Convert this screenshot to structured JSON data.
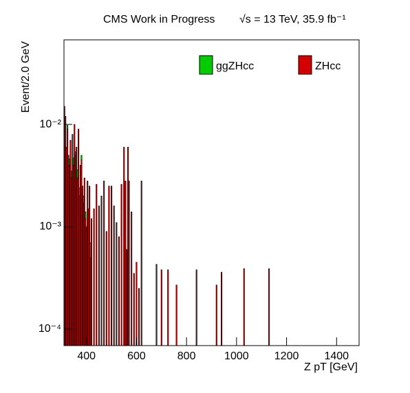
{
  "chart_data": {
    "type": "bar",
    "title": "CMS Work in Progress",
    "subtitle": "√s = 13 TeV, 35.9 fb⁻¹",
    "x_label": "Z pT [GeV]",
    "y_label": "Event/2.0 GeV",
    "log_y": true,
    "stacked": true,
    "legend": "top-right",
    "xlim": [
      310,
      1490
    ],
    "xticks": [
      400,
      600,
      800,
      1000,
      1200,
      1400
    ],
    "ylim": [
      6.9e-05,
      0.067
    ],
    "yticks": [
      {
        "value": 0.0001,
        "label": "10⁻⁴"
      },
      {
        "value": 0.001,
        "label": "10⁻³"
      },
      {
        "value": 0.01,
        "label": "10⁻²"
      }
    ],
    "x": [
      312,
      316,
      320,
      324,
      328,
      332,
      336,
      340,
      344,
      348,
      352,
      356,
      360,
      364,
      368,
      372,
      376,
      380,
      384,
      388,
      392,
      396,
      400,
      404,
      408,
      412,
      416,
      420,
      430,
      440,
      450,
      460,
      470,
      480,
      490,
      500,
      510,
      520,
      530,
      540,
      550,
      556,
      560,
      566,
      570,
      580,
      590,
      600,
      610,
      620,
      680,
      700,
      726,
      760,
      840,
      920,
      940,
      1030,
      1130
    ],
    "series": [
      {
        "name": "ZHcc",
        "color": "#d40000",
        "values": [
          0.015,
          0.012,
          0.006,
          0.009,
          0.005,
          0.004,
          0.007,
          0.003,
          0.008,
          0.004,
          0.01,
          0.005,
          0.006,
          0.003,
          0.009,
          0.002,
          0.004,
          0.0045,
          0.0025,
          0.0017,
          0.003,
          0.0012,
          0.001,
          0.0028,
          0.0015,
          0.0025,
          0.0005,
          0.0012,
          0.0015,
          0.0026,
          0.0016,
          0.002,
          0.0028,
          0.0009,
          0.0025,
          0.0025,
          0.0016,
          0.0011,
          0.0008,
          0.0026,
          0.006,
          0.0028,
          0.0006,
          0.006,
          0.0028,
          0.0014,
          0.00035,
          0.00045,
          0.00025,
          0.0028,
          0.00043,
          0.00038,
          0.00038,
          0.00027,
          0.00038,
          0.00027,
          0.00036,
          0.00039,
          0.00039
        ]
      },
      {
        "name": "ggZHcc",
        "color": "#00cc00",
        "values": [
          0,
          0,
          0,
          0.0008,
          0,
          0.0006,
          0,
          0.0005,
          0,
          0.0007,
          0,
          0.0004,
          0,
          0.0006,
          0,
          0.0004,
          0,
          0.0005,
          0,
          0.0003,
          0,
          0.0002,
          0,
          0,
          0,
          0,
          0.0002,
          0,
          0,
          0,
          0,
          0,
          0,
          0,
          0,
          0,
          0,
          0,
          0,
          0,
          0,
          0,
          0,
          0,
          0,
          0,
          0,
          0,
          0,
          0,
          0,
          0,
          0,
          0,
          0,
          0,
          0,
          0,
          0
        ]
      }
    ]
  }
}
